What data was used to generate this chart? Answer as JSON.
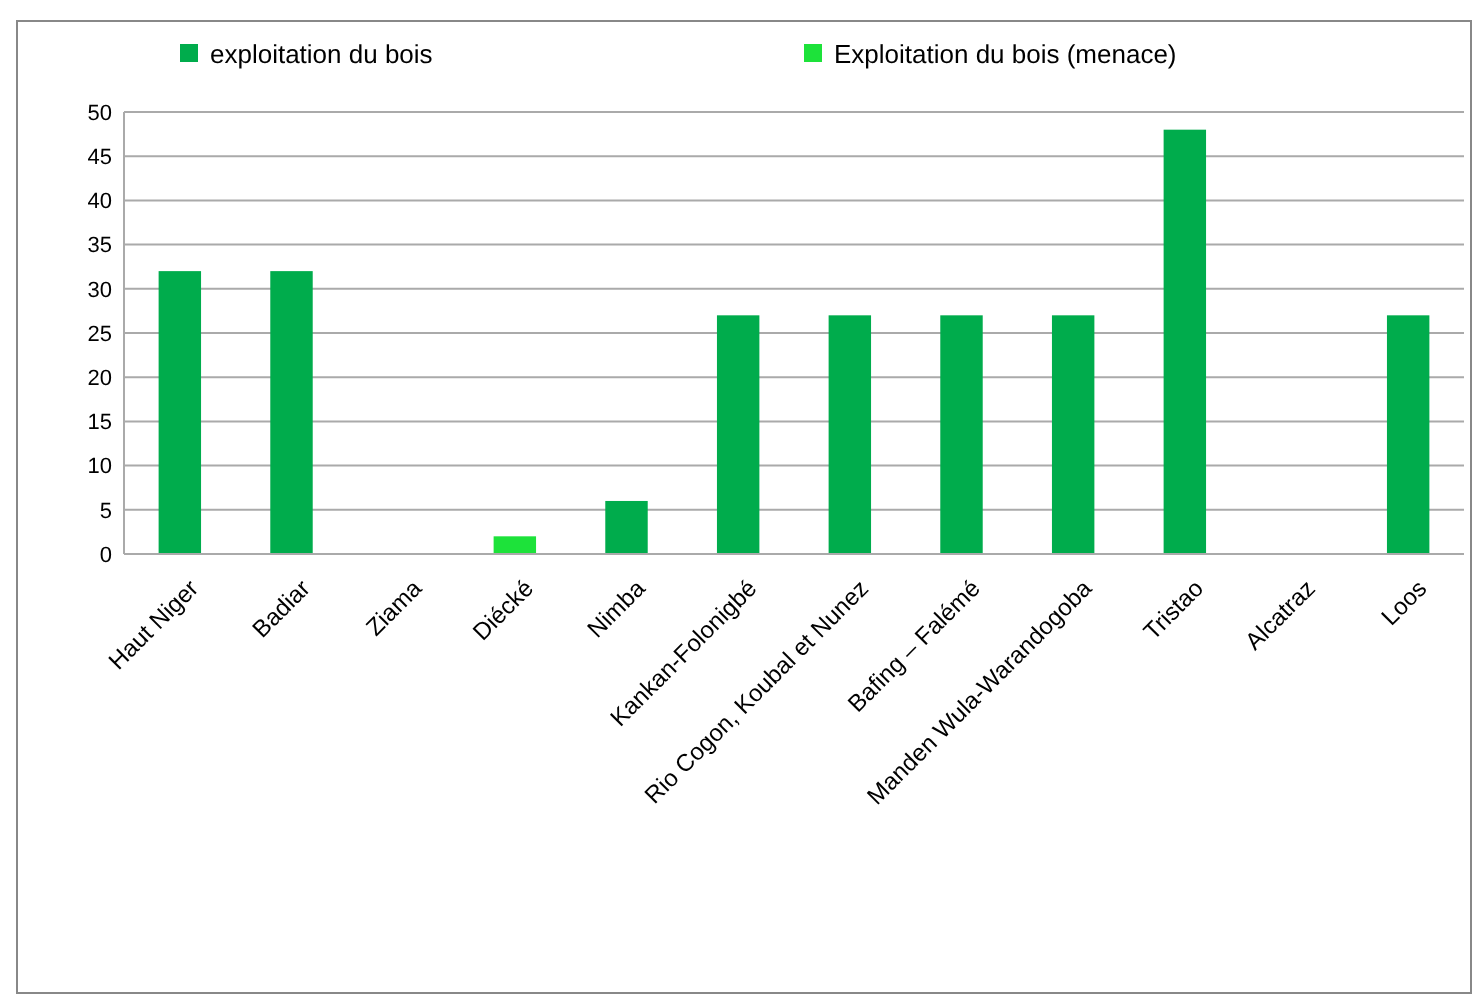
{
  "chart_data": {
    "type": "bar",
    "categories": [
      "Haut Niger",
      "Badiar",
      "Ziama",
      "Diécké",
      "Nimba",
      "Kankan-Folonigbé",
      "Rio Cogon, Koubal et Nunez",
      "Bafing – Falémé",
      "Manden Wula-Warandogoba",
      "Tristao",
      "Alcatraz",
      "Loos"
    ],
    "series": [
      {
        "name": "exploitation du bois",
        "color": "#00ac4c",
        "values": [
          32,
          32,
          null,
          null,
          6,
          27,
          27,
          27,
          27,
          48,
          null,
          27
        ]
      },
      {
        "name": "Exploitation du bois (menace)",
        "color": "#1de23a",
        "values": [
          null,
          null,
          null,
          2,
          null,
          null,
          null,
          null,
          null,
          null,
          null,
          null
        ]
      }
    ],
    "ylim": [
      0,
      50
    ],
    "yticks": [
      0,
      5,
      10,
      15,
      20,
      25,
      30,
      35,
      40,
      45,
      50
    ],
    "grid": "y",
    "legend": "top"
  }
}
